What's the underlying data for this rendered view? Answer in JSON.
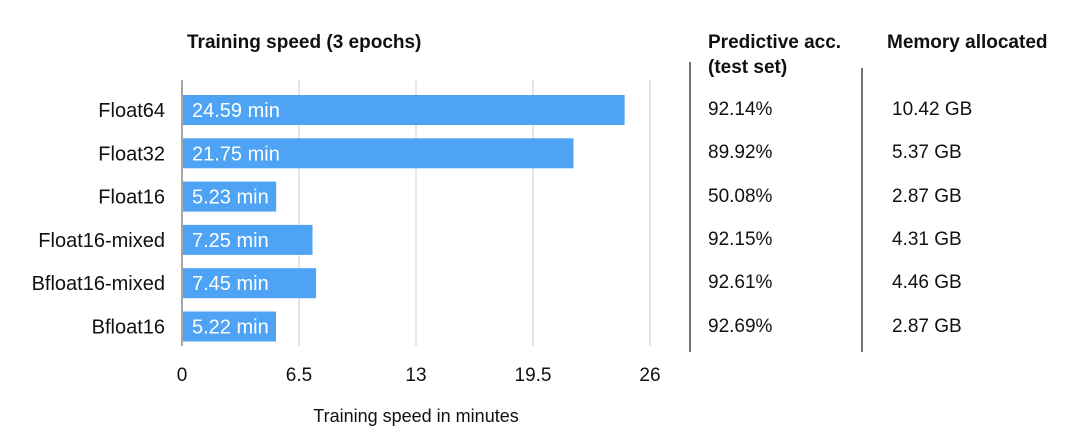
{
  "chart_data": {
    "type": "bar",
    "title": "Training speed (3 epochs)",
    "xlabel": "Training speed in minutes",
    "ylabel": "",
    "categories": [
      "Float64",
      "Float32",
      "Float16",
      "Float16-mixed",
      "Bfloat16-mixed",
      "Bfloat16"
    ],
    "values": [
      24.59,
      21.75,
      5.23,
      7.25,
      7.45,
      5.22
    ],
    "data_labels": [
      "24.59 min",
      "21.75 min",
      "5.23 min",
      "7.25 min",
      "7.45 min",
      "5.22 min"
    ],
    "xlim": [
      0,
      26
    ],
    "xticks": [
      0,
      6.5,
      13,
      19.5,
      26
    ],
    "xtick_labels": [
      "0",
      "6.5",
      "13",
      "19.5",
      "26"
    ],
    "grid": true,
    "orientation": "horizontal",
    "bar_color": "#4ea3f5",
    "grid_color": "#cccccc",
    "axis_color": "#888888"
  },
  "table_columns": {
    "accuracy": {
      "header_line1": "Predictive acc.",
      "header_line2": "(test set)",
      "values": [
        "92.14%",
        "89.92%",
        "50.08%",
        "92.15%",
        "92.61%",
        "92.69%"
      ]
    },
    "memory": {
      "header": "Memory allocated",
      "values": [
        "10.42 GB",
        "5.37 GB",
        "2.87 GB",
        "4.31 GB",
        "4.46 GB",
        "2.87 GB"
      ]
    }
  }
}
